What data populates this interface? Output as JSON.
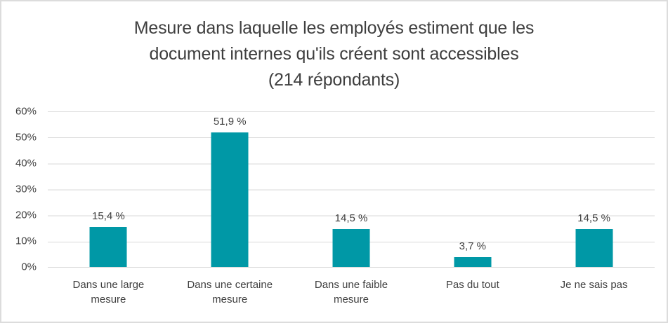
{
  "window": {
    "background": "#ffffff",
    "border_color": "#dcdcdc"
  },
  "chart_data": {
    "type": "bar",
    "title": "Mesure dans laquelle les employés estiment que les document internes qu'ils créent sont accessibles (214 répondants)",
    "title_lines": [
      "Mesure dans laquelle les employés estiment que les",
      "document internes qu'ils créent sont accessibles",
      "(214 répondants)"
    ],
    "categories": [
      "Dans une large mesure",
      "Dans une certaine mesure",
      "Dans une faible mesure",
      "Pas du tout",
      "Je ne sais pas"
    ],
    "values": [
      15.4,
      51.9,
      14.5,
      3.7,
      14.5
    ],
    "value_labels": [
      "15,4 %",
      "51,9 %",
      "14,5 %",
      "3,7 %",
      "14,5 %"
    ],
    "y_tick_labels": [
      "60%",
      "50%",
      "40%",
      "30%",
      "20%",
      "10%",
      "0%"
    ],
    "ylim": [
      0,
      60
    ],
    "xlabel": "",
    "ylabel": "",
    "grid": true,
    "legend": false,
    "bar_color": "#0098a6",
    "gridline_color": "#d9d9d9",
    "text_color": "#404040"
  }
}
